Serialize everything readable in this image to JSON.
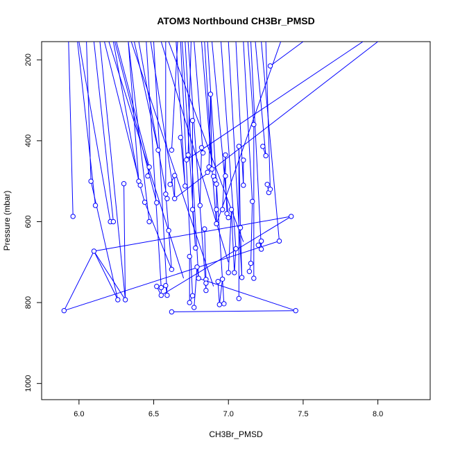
{
  "chart_data": {
    "type": "scatter",
    "title": "ATOM3 Northbound CH3Br_PMSD",
    "xlabel": "CH3Br_PMSD",
    "ylabel": "Pressure (mbar)",
    "xlim": [
      5.75,
      8.35
    ],
    "ylim": [
      1040,
      155
    ],
    "y_inverted": true,
    "xticks": [
      6.0,
      6.5,
      7.0,
      7.5,
      8.0
    ],
    "xtick_labels": [
      "6.0",
      "6.5",
      "7.0",
      "7.5",
      "8.0"
    ],
    "yticks": [
      200,
      400,
      600,
      800,
      1000
    ],
    "ytick_labels": [
      "200",
      "400",
      "600",
      "800",
      "1000"
    ],
    "grid": false,
    "series": [
      {
        "color": "#0000ff",
        "points": [
          {
            "x": 5.9,
            "y": 820
          },
          {
            "x": 6.1,
            "y": 673
          },
          {
            "x": 6.26,
            "y": 793
          },
          {
            "x": 6.08,
            "y": 500
          },
          {
            "x": 6.11,
            "y": 560
          },
          {
            "x": 5.96,
            "y": 587
          },
          {
            "x": 6.21,
            "y": 600
          },
          {
            "x": 6.23,
            "y": 600
          },
          {
            "x": 6.3,
            "y": 506
          },
          {
            "x": 6.31,
            "y": 793
          },
          {
            "x": 6.4,
            "y": 500
          },
          {
            "x": 6.41,
            "y": 510
          },
          {
            "x": 6.44,
            "y": 552
          },
          {
            "x": 6.46,
            "y": 487
          },
          {
            "x": 6.47,
            "y": 465
          },
          {
            "x": 6.47,
            "y": 600
          },
          {
            "x": 6.52,
            "y": 553
          },
          {
            "x": 6.53,
            "y": 423
          },
          {
            "x": 6.52,
            "y": 760
          },
          {
            "x": 6.55,
            "y": 782
          },
          {
            "x": 6.55,
            "y": 763
          },
          {
            "x": 6.58,
            "y": 532
          },
          {
            "x": 6.59,
            "y": 543
          },
          {
            "x": 6.58,
            "y": 758
          },
          {
            "x": 6.59,
            "y": 782
          },
          {
            "x": 6.6,
            "y": 622
          },
          {
            "x": 6.61,
            "y": 508
          },
          {
            "x": 6.62,
            "y": 718
          },
          {
            "x": 6.62,
            "y": 823
          },
          {
            "x": 6.62,
            "y": 423
          },
          {
            "x": 6.64,
            "y": 486
          },
          {
            "x": 6.64,
            "y": 543
          },
          {
            "x": 6.68,
            "y": 392
          },
          {
            "x": 6.71,
            "y": 512
          },
          {
            "x": 6.72,
            "y": 447
          },
          {
            "x": 6.73,
            "y": 435
          },
          {
            "x": 6.74,
            "y": 686
          },
          {
            "x": 6.74,
            "y": 800
          },
          {
            "x": 6.76,
            "y": 783
          },
          {
            "x": 6.76,
            "y": 350
          },
          {
            "x": 6.76,
            "y": 570
          },
          {
            "x": 6.77,
            "y": 812
          },
          {
            "x": 6.78,
            "y": 665
          },
          {
            "x": 6.79,
            "y": 712
          },
          {
            "x": 6.8,
            "y": 740
          },
          {
            "x": 6.81,
            "y": 560
          },
          {
            "x": 6.82,
            "y": 417
          },
          {
            "x": 6.83,
            "y": 430
          },
          {
            "x": 6.84,
            "y": 618
          },
          {
            "x": 6.85,
            "y": 743
          },
          {
            "x": 6.85,
            "y": 752
          },
          {
            "x": 6.85,
            "y": 770
          },
          {
            "x": 6.86,
            "y": 478
          },
          {
            "x": 6.87,
            "y": 465
          },
          {
            "x": 6.88,
            "y": 285
          },
          {
            "x": 6.89,
            "y": 470
          },
          {
            "x": 6.9,
            "y": 488
          },
          {
            "x": 6.91,
            "y": 497
          },
          {
            "x": 6.92,
            "y": 507
          },
          {
            "x": 6.92,
            "y": 570
          },
          {
            "x": 6.92,
            "y": 605
          },
          {
            "x": 6.93,
            "y": 748
          },
          {
            "x": 6.94,
            "y": 805
          },
          {
            "x": 6.96,
            "y": 742
          },
          {
            "x": 6.96,
            "y": 570
          },
          {
            "x": 6.97,
            "y": 803
          },
          {
            "x": 6.98,
            "y": 435
          },
          {
            "x": 6.98,
            "y": 487
          },
          {
            "x": 6.99,
            "y": 580
          },
          {
            "x": 7.0,
            "y": 590
          },
          {
            "x": 7.0,
            "y": 726
          },
          {
            "x": 7.02,
            "y": 570
          },
          {
            "x": 7.04,
            "y": 726
          },
          {
            "x": 7.05,
            "y": 667
          },
          {
            "x": 7.07,
            "y": 790
          },
          {
            "x": 7.07,
            "y": 414
          },
          {
            "x": 7.08,
            "y": 615
          },
          {
            "x": 7.09,
            "y": 738
          },
          {
            "x": 7.1,
            "y": 448
          },
          {
            "x": 7.1,
            "y": 510
          },
          {
            "x": 7.14,
            "y": 723
          },
          {
            "x": 7.15,
            "y": 703
          },
          {
            "x": 7.16,
            "y": 550
          },
          {
            "x": 7.17,
            "y": 740
          },
          {
            "x": 7.17,
            "y": 360
          },
          {
            "x": 7.2,
            "y": 658
          },
          {
            "x": 7.22,
            "y": 648
          },
          {
            "x": 7.22,
            "y": 668
          },
          {
            "x": 7.23,
            "y": 414
          },
          {
            "x": 7.25,
            "y": 437
          },
          {
            "x": 7.26,
            "y": 508
          },
          {
            "x": 7.27,
            "y": 528
          },
          {
            "x": 7.28,
            "y": 520
          },
          {
            "x": 7.28,
            "y": 215
          },
          {
            "x": 7.34,
            "y": 648
          },
          {
            "x": 7.42,
            "y": 587
          },
          {
            "x": 7.45,
            "y": 820
          }
        ],
        "profiles": [
          [
            [
              6.58,
              155
            ],
            [
              6.58,
              530
            ],
            [
              6.6,
              622
            ],
            [
              6.62,
              718
            ],
            [
              6.44,
              552
            ],
            [
              6.4,
              500
            ],
            [
              6.23,
              155
            ]
          ],
          [
            [
              5.9,
              820
            ],
            [
              6.1,
              673
            ],
            [
              6.26,
              793
            ],
            [
              6.08,
              500
            ],
            [
              6.05,
              155
            ]
          ],
          [
            [
              5.96,
              587
            ],
            [
              5.93,
              155
            ]
          ],
          [
            [
              6.11,
              560
            ],
            [
              5.99,
              155
            ]
          ],
          [
            [
              6.21,
              600
            ],
            [
              6.0,
              155
            ]
          ],
          [
            [
              6.23,
              600
            ],
            [
              6.1,
              155
            ]
          ],
          [
            [
              6.3,
              506
            ],
            [
              6.31,
              793
            ],
            [
              6.1,
              673
            ]
          ],
          [
            [
              6.31,
              793
            ],
            [
              6.14,
              155
            ]
          ],
          [
            [
              6.41,
              510
            ],
            [
              6.17,
              155
            ]
          ],
          [
            [
              6.46,
              487
            ],
            [
              6.47,
              465
            ],
            [
              6.25,
              155
            ]
          ],
          [
            [
              6.47,
              600
            ],
            [
              6.33,
              155
            ]
          ],
          [
            [
              6.52,
              553
            ],
            [
              6.24,
              155
            ]
          ],
          [
            [
              6.53,
              423
            ],
            [
              6.37,
              155
            ]
          ],
          [
            [
              6.52,
              760
            ],
            [
              6.55,
              782
            ],
            [
              6.55,
              763
            ],
            [
              6.45,
              155
            ]
          ],
          [
            [
              6.59,
              543
            ],
            [
              6.4,
              155
            ]
          ],
          [
            [
              6.58,
              758
            ],
            [
              6.59,
              782
            ],
            [
              6.5,
              155
            ]
          ],
          [
            [
              6.61,
              508
            ],
            [
              6.64,
              486
            ],
            [
              6.64,
              543
            ],
            [
              6.48,
              155
            ]
          ],
          [
            [
              6.62,
              823
            ],
            [
              7.45,
              820
            ]
          ],
          [
            [
              6.62,
              423
            ],
            [
              6.66,
              155
            ]
          ],
          [
            [
              6.68,
              392
            ],
            [
              6.71,
              512
            ],
            [
              6.65,
              155
            ]
          ],
          [
            [
              6.72,
              447
            ],
            [
              6.73,
              435
            ],
            [
              6.75,
              155
            ]
          ],
          [
            [
              6.74,
              686
            ],
            [
              6.74,
              800
            ],
            [
              6.76,
              783
            ],
            [
              6.68,
              155
            ]
          ],
          [
            [
              6.76,
              350
            ],
            [
              6.76,
              570
            ],
            [
              6.78,
              665
            ],
            [
              6.69,
              155
            ]
          ],
          [
            [
              6.77,
              812
            ],
            [
              6.79,
              712
            ],
            [
              6.8,
              740
            ],
            [
              6.71,
              155
            ]
          ],
          [
            [
              6.81,
              560
            ],
            [
              6.82,
              417
            ],
            [
              6.83,
              430
            ],
            [
              6.77,
              155
            ]
          ],
          [
            [
              6.84,
              618
            ],
            [
              6.85,
              743
            ],
            [
              6.85,
              752
            ],
            [
              6.85,
              770
            ],
            [
              6.73,
              155
            ]
          ],
          [
            [
              6.86,
              478
            ],
            [
              6.87,
              465
            ],
            [
              6.88,
              285
            ],
            [
              6.89,
              470
            ],
            [
              6.84,
              155
            ]
          ],
          [
            [
              6.9,
              488
            ],
            [
              6.91,
              497
            ],
            [
              6.92,
              507
            ],
            [
              6.92,
              570
            ],
            [
              6.92,
              605
            ],
            [
              6.82,
              155
            ]
          ],
          [
            [
              6.93,
              748
            ],
            [
              6.94,
              805
            ],
            [
              6.96,
              742
            ],
            [
              6.97,
              803
            ],
            [
              6.86,
              155
            ]
          ],
          [
            [
              6.96,
              570
            ],
            [
              6.98,
              435
            ],
            [
              6.98,
              487
            ],
            [
              6.99,
              580
            ],
            [
              7.0,
              590
            ],
            [
              6.89,
              155
            ]
          ],
          [
            [
              7.0,
              726
            ],
            [
              7.02,
              570
            ],
            [
              7.04,
              726
            ],
            [
              7.05,
              667
            ],
            [
              6.95,
              155
            ]
          ],
          [
            [
              7.07,
              790
            ],
            [
              7.07,
              414
            ],
            [
              7.08,
              615
            ],
            [
              7.09,
              738
            ],
            [
              7.0,
              155
            ]
          ],
          [
            [
              7.1,
              448
            ],
            [
              7.1,
              510
            ],
            [
              7.05,
              155
            ]
          ],
          [
            [
              7.14,
              723
            ],
            [
              7.15,
              703
            ],
            [
              7.16,
              550
            ],
            [
              7.1,
              155
            ]
          ],
          [
            [
              7.17,
              740
            ],
            [
              7.17,
              360
            ],
            [
              7.13,
              155
            ]
          ],
          [
            [
              7.2,
              658
            ],
            [
              7.22,
              648
            ],
            [
              7.22,
              668
            ],
            [
              7.15,
              155
            ]
          ],
          [
            [
              7.23,
              414
            ],
            [
              7.25,
              437
            ],
            [
              7.18,
              155
            ]
          ],
          [
            [
              7.26,
              508
            ],
            [
              7.27,
              528
            ],
            [
              7.28,
              520
            ],
            [
              7.25,
              155
            ]
          ],
          [
            [
              7.28,
              215
            ],
            [
              7.5,
              155
            ]
          ],
          [
            [
              7.34,
              648
            ],
            [
              7.22,
              155
            ]
          ],
          [
            [
              7.42,
              587
            ],
            [
              6.1,
              673
            ]
          ],
          [
            [
              7.42,
              587
            ],
            [
              6.55,
              782
            ]
          ],
          [
            [
              5.9,
              820
            ],
            [
              7.34,
              648
            ]
          ],
          [
            [
              6.8,
              740
            ],
            [
              7.45,
              820
            ]
          ],
          [
            [
              6.72,
              447
            ],
            [
              7.9,
              155
            ]
          ],
          [
            [
              6.64,
              543
            ],
            [
              8.0,
              155
            ]
          ],
          [
            [
              6.92,
              605
            ],
            [
              7.35,
              155
            ]
          ],
          [
            [
              6.4,
              500
            ],
            [
              6.33,
              155
            ]
          ],
          [
            [
              6.2,
              155
            ],
            [
              6.7,
              740
            ]
          ],
          [
            [
              6.35,
              155
            ],
            [
              6.9,
              760
            ]
          ],
          [
            [
              6.55,
              155
            ],
            [
              7.0,
              700
            ]
          ],
          [
            [
              6.6,
              155
            ],
            [
              7.1,
              650
            ]
          ]
        ]
      }
    ]
  }
}
